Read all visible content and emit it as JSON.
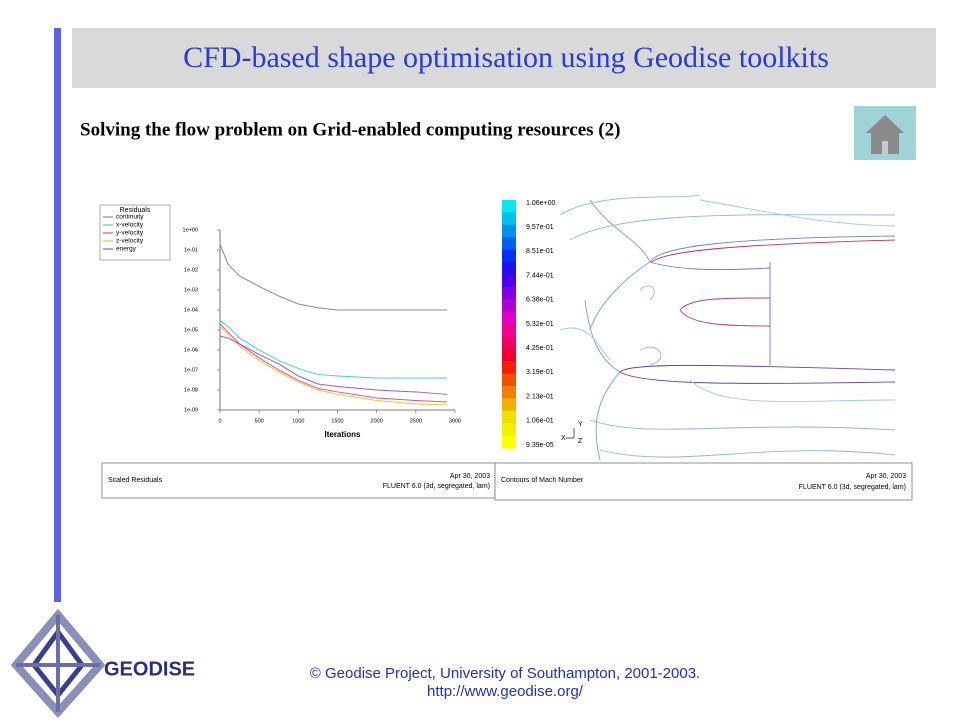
{
  "header": {
    "title": "CFD-based shape optimisation using Geodise toolkits"
  },
  "subtitle": "Solving the flow problem on Grid-enabled computing resources (2)",
  "residuals_plot": {
    "type": "line",
    "legend_title": "Residuals",
    "x_label": "Iterations",
    "x": [
      0,
      100,
      250,
      500,
      750,
      1000,
      1250,
      1500,
      2000,
      2500,
      2900
    ],
    "series": [
      {
        "name": "continuity",
        "color": "#8c8c8c",
        "values": [
          0.2,
          0.02,
          0.005,
          0.0015,
          0.0005,
          0.0002,
          0.00013,
          0.0001,
          0.0001,
          0.0001,
          0.0001
        ]
      },
      {
        "name": "x-velocity",
        "color": "#40d0d8",
        "values": [
          3e-05,
          1.5e-05,
          4e-06,
          1e-06,
          3e-07,
          1.2e-07,
          6e-08,
          5e-08,
          4e-08,
          4e-08,
          4e-08
        ]
      },
      {
        "name": "y-velocity",
        "color": "#e8507a",
        "values": [
          2e-05,
          8e-06,
          2e-06,
          4e-07,
          1e-07,
          3e-08,
          1.2e-08,
          8e-09,
          4e-09,
          3e-09,
          2.5e-09
        ]
      },
      {
        "name": "z-velocity",
        "color": "#e0c840",
        "values": [
          1.5e-05,
          6e-06,
          1.5e-06,
          3e-07,
          8e-08,
          2.5e-08,
          1e-08,
          6e-09,
          3e-09,
          2e-09,
          1.8e-09
        ]
      },
      {
        "name": "energy",
        "color": "#9060c8",
        "values": [
          5e-06,
          4e-06,
          2e-06,
          6e-07,
          2e-07,
          5e-08,
          2e-08,
          1.5e-08,
          1e-08,
          8e-09,
          6e-09
        ]
      }
    ],
    "xlim": [
      0,
      3000
    ],
    "xticks": [
      0,
      500,
      1000,
      1500,
      2000,
      2500,
      3000
    ],
    "log_scale": true,
    "ylim": [
      1e-09,
      1
    ],
    "yticks": [
      {
        "value": 1,
        "label": "1e+00"
      },
      {
        "value": 0.1,
        "label": "1e-01"
      },
      {
        "value": 0.01,
        "label": "1e-02"
      },
      {
        "value": 0.001,
        "label": "1e-03"
      },
      {
        "value": 0.0001,
        "label": "1e-04"
      },
      {
        "value": 1e-05,
        "label": "1e-05"
      },
      {
        "value": 1e-06,
        "label": "1e-06"
      },
      {
        "value": 1e-07,
        "label": "1e-07"
      },
      {
        "value": 1e-08,
        "label": "1e-08"
      },
      {
        "value": 1e-09,
        "label": "1e-09"
      }
    ],
    "footer": {
      "caption": "Scaled Residuals",
      "date": "Apr 30, 2003",
      "solver": "FLUENT 6.0 (3d, segregated, lam)"
    }
  },
  "contour_plot": {
    "colorbar_labels": [
      "1.06e+00",
      "9.57e-01",
      "8.51e-01",
      "7.44e-01",
      "6.38e-01",
      "5.32e-01",
      "4.25e-01",
      "3.19e-01",
      "2.13e-01",
      "1.06e-01",
      "9.39e-05"
    ],
    "axis_labels": [
      "Y",
      "X",
      "Z"
    ],
    "footer": {
      "caption": "Contours of Mach Number",
      "date": "Apr 30, 2003",
      "solver": "FLUENT 6.0 (3d, segregated, lam)"
    }
  },
  "logo": "GEODISE",
  "footer": {
    "copyright": "© Geodise Project, University of Southampton, 2001-2003.",
    "url": "http://www.geodise.org/"
  }
}
